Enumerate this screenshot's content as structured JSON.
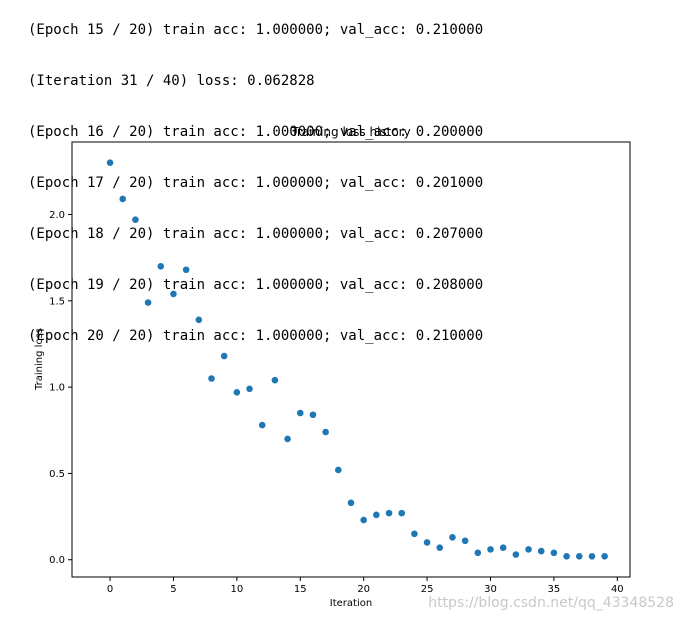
{
  "console": {
    "lines": [
      "(Epoch 15 / 20) train acc: 1.000000; val_acc: 0.210000",
      "(Iteration 31 / 40) loss: 0.062828",
      "(Epoch 16 / 20) train acc: 1.000000; val_acc: 0.200000",
      "(Epoch 17 / 20) train acc: 1.000000; val_acc: 0.201000",
      "(Epoch 18 / 20) train acc: 1.000000; val_acc: 0.207000",
      "(Epoch 19 / 20) train acc: 1.000000; val_acc: 0.208000",
      "(Epoch 20 / 20) train acc: 1.000000; val_acc: 0.210000"
    ]
  },
  "watermark": "https://blog.csdn.net/qq_43348528",
  "chart_data": {
    "type": "scatter",
    "title": "Training loss history",
    "xlabel": "Iteration",
    "ylabel": "Training loss",
    "xlim": [
      -3,
      41
    ],
    "ylim": [
      -0.1,
      2.42
    ],
    "xticks": [
      0,
      5,
      10,
      15,
      20,
      25,
      30,
      35,
      40
    ],
    "yticks": [
      0.0,
      0.5,
      1.0,
      1.5,
      2.0
    ],
    "ytick_labels": [
      "0.0",
      "0.5",
      "1.0",
      "1.5",
      "2.0"
    ],
    "grid": false,
    "color": "#1f77b4",
    "x": [
      0,
      1,
      2,
      3,
      4,
      5,
      6,
      7,
      8,
      9,
      10,
      11,
      12,
      13,
      14,
      15,
      16,
      17,
      18,
      19,
      20,
      21,
      22,
      23,
      24,
      25,
      26,
      27,
      28,
      29,
      30,
      31,
      32,
      33,
      34,
      35,
      36,
      37,
      38,
      39
    ],
    "y": [
      2.3,
      2.09,
      1.97,
      1.49,
      1.7,
      1.54,
      1.68,
      1.39,
      1.05,
      1.18,
      0.97,
      0.99,
      0.78,
      1.04,
      0.7,
      0.85,
      0.84,
      0.74,
      0.52,
      0.33,
      0.23,
      0.26,
      0.27,
      0.27,
      0.15,
      0.1,
      0.07,
      0.13,
      0.11,
      0.04,
      0.06,
      0.07,
      0.03,
      0.06,
      0.05,
      0.04,
      0.02,
      0.02,
      0.02,
      0.02
    ]
  }
}
